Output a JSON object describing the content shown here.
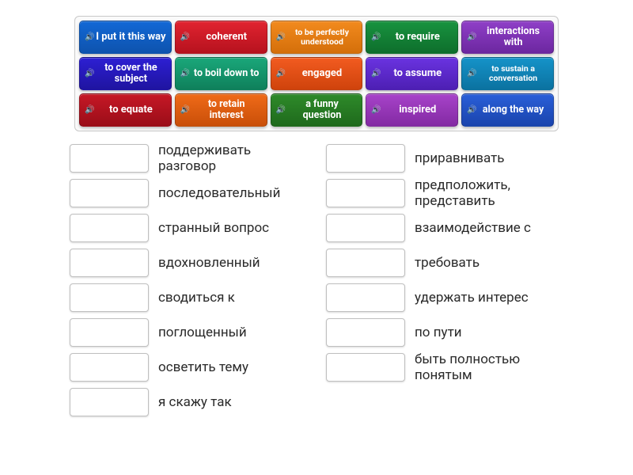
{
  "tiles": [
    {
      "label": "I put it this way",
      "size": "",
      "bg": "#1268d6",
      "grad": "#0e53ae"
    },
    {
      "label": "coherent",
      "size": "",
      "bg": "#e12330",
      "grad": "#b6121e"
    },
    {
      "label": "to be perfectly understood",
      "size": "small",
      "bg": "#f28a1e",
      "grad": "#d46f0a"
    },
    {
      "label": "to require",
      "size": "",
      "bg": "#18933f",
      "grad": "#0e6e2c"
    },
    {
      "label": "interactions with",
      "size": "med",
      "bg": "#8f3fc7",
      "grad": "#6c27a0"
    },
    {
      "label": "to cover the subject",
      "size": "med",
      "bg": "#2d1fd3",
      "grad": "#1f14a0"
    },
    {
      "label": "to boil down to",
      "size": "med",
      "bg": "#1aa77a",
      "grad": "#0f805b"
    },
    {
      "label": "engaged",
      "size": "",
      "bg": "#f25b20",
      "grad": "#cf430c"
    },
    {
      "label": "to assume",
      "size": "",
      "bg": "#6a33e0",
      "grad": "#4d1fb3"
    },
    {
      "label": "to sustain a conversation",
      "size": "small",
      "bg": "#1593c9",
      "grad": "#0b72a0"
    },
    {
      "label": "to equate",
      "size": "",
      "bg": "#c61826",
      "grad": "#9a0d18"
    },
    {
      "label": "to retain interest",
      "size": "med",
      "bg": "#ef6a18",
      "grad": "#c94f09"
    },
    {
      "label": "a funny question",
      "size": "med",
      "bg": "#2e8a2a",
      "grad": "#1f6a1c"
    },
    {
      "label": "inspired",
      "size": "",
      "bg": "#a743c9",
      "grad": "#832aa3"
    },
    {
      "label": "along the way",
      "size": "med",
      "bg": "#2a5fd8",
      "grad": "#1a44ad"
    }
  ],
  "answers_left": [
    "поддерживать разговор",
    "последовательный",
    "странный вопрос",
    "вдохновленный",
    "сводиться к",
    "поглощенный",
    "осветить тему",
    "я скажу так"
  ],
  "answers_right": [
    "приравнивать",
    "предположить, представить",
    "взаимодействие с",
    "требовать",
    "удержать интерес",
    "по пути",
    "быть полностью понятым"
  ],
  "icons": {
    "sound": "🔊"
  }
}
